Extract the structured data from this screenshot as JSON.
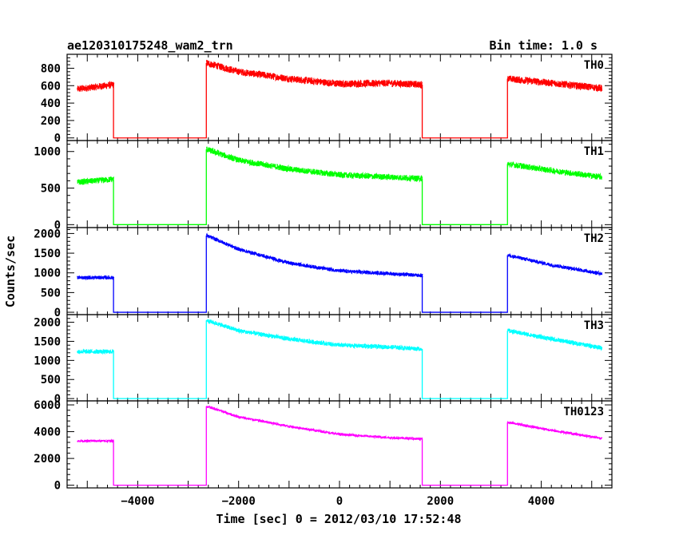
{
  "chart_data": {
    "type": "line",
    "title": "ae120310175248_wam2_trn",
    "bin_time_label": "Bin time: 1.0 s",
    "xlabel": "Time [sec] 0 = 2012/03/10 17:52:48",
    "ylabel": "Counts/sec",
    "xlim": [
      -5400,
      5400
    ],
    "xticks": [
      -4000,
      -2000,
      0,
      2000,
      4000
    ],
    "xtick_labels": [
      "−4000",
      "−2000",
      "0",
      "2000",
      "4000"
    ],
    "segments": {
      "on1": [
        -5200,
        -4480
      ],
      "off1": [
        -4480,
        -2640
      ],
      "on2": [
        -2640,
        1640
      ],
      "off2": [
        1640,
        3330
      ],
      "on3": [
        3330,
        5200
      ]
    },
    "panels": [
      {
        "name": "TH0",
        "color": "#ff0000",
        "ylim": [
          -30,
          960
        ],
        "yticks": [
          0,
          200,
          400,
          600,
          800
        ],
        "ytick_labels": [
          "0",
          "200",
          "400",
          "600",
          "800"
        ],
        "noise": 40,
        "data": [
          {
            "x": -5200,
            "y": 560
          },
          {
            "x": -4480,
            "y": 610
          },
          {
            "x": -4480,
            "y": 0
          },
          {
            "x": -2640,
            "y": 0
          },
          {
            "x": -2640,
            "y": 860
          },
          {
            "x": -2000,
            "y": 760
          },
          {
            "x": -1000,
            "y": 680
          },
          {
            "x": 0,
            "y": 620
          },
          {
            "x": 1000,
            "y": 630
          },
          {
            "x": 1640,
            "y": 610
          },
          {
            "x": 1640,
            "y": 0
          },
          {
            "x": 3330,
            "y": 0
          },
          {
            "x": 3330,
            "y": 680
          },
          {
            "x": 4200,
            "y": 630
          },
          {
            "x": 5200,
            "y": 570
          }
        ]
      },
      {
        "name": "TH1",
        "color": "#00ff00",
        "ylim": [
          -40,
          1150
        ],
        "yticks": [
          0,
          500,
          1000
        ],
        "ytick_labels": [
          "0",
          "500",
          "1000"
        ],
        "noise": 40,
        "data": [
          {
            "x": -5200,
            "y": 580
          },
          {
            "x": -4480,
            "y": 620
          },
          {
            "x": -4480,
            "y": 0
          },
          {
            "x": -2640,
            "y": 0
          },
          {
            "x": -2640,
            "y": 1030
          },
          {
            "x": -2000,
            "y": 880
          },
          {
            "x": -1000,
            "y": 760
          },
          {
            "x": 0,
            "y": 680
          },
          {
            "x": 1000,
            "y": 650
          },
          {
            "x": 1640,
            "y": 630
          },
          {
            "x": 1640,
            "y": 0
          },
          {
            "x": 3330,
            "y": 0
          },
          {
            "x": 3330,
            "y": 830
          },
          {
            "x": 4200,
            "y": 740
          },
          {
            "x": 5200,
            "y": 650
          }
        ]
      },
      {
        "name": "TH2",
        "color": "#0000ff",
        "ylim": [
          -60,
          2150
        ],
        "yticks": [
          0,
          500,
          1000,
          1500,
          2000
        ],
        "ytick_labels": [
          "0",
          "500",
          "1000",
          "1500",
          "2000"
        ],
        "noise": 45,
        "data": [
          {
            "x": -5200,
            "y": 880
          },
          {
            "x": -4480,
            "y": 880
          },
          {
            "x": -4480,
            "y": 0
          },
          {
            "x": -2640,
            "y": 0
          },
          {
            "x": -2640,
            "y": 1950
          },
          {
            "x": -2000,
            "y": 1600
          },
          {
            "x": -1000,
            "y": 1250
          },
          {
            "x": 0,
            "y": 1050
          },
          {
            "x": 1000,
            "y": 980
          },
          {
            "x": 1640,
            "y": 930
          },
          {
            "x": 1640,
            "y": 0
          },
          {
            "x": 3330,
            "y": 0
          },
          {
            "x": 3330,
            "y": 1450
          },
          {
            "x": 4200,
            "y": 1200
          },
          {
            "x": 5200,
            "y": 980
          }
        ]
      },
      {
        "name": "TH3",
        "color": "#00ffff",
        "ylim": [
          -60,
          2200
        ],
        "yticks": [
          0,
          500,
          1000,
          1500,
          2000
        ],
        "ytick_labels": [
          "0",
          "500",
          "1000",
          "1500",
          "2000"
        ],
        "noise": 55,
        "data": [
          {
            "x": -5200,
            "y": 1230
          },
          {
            "x": -4480,
            "y": 1230
          },
          {
            "x": -4480,
            "y": 0
          },
          {
            "x": -2640,
            "y": 0
          },
          {
            "x": -2640,
            "y": 2050
          },
          {
            "x": -2000,
            "y": 1780
          },
          {
            "x": -1000,
            "y": 1560
          },
          {
            "x": 0,
            "y": 1400
          },
          {
            "x": 1000,
            "y": 1350
          },
          {
            "x": 1640,
            "y": 1300
          },
          {
            "x": 1640,
            "y": 0
          },
          {
            "x": 3330,
            "y": 0
          },
          {
            "x": 3330,
            "y": 1780
          },
          {
            "x": 4200,
            "y": 1560
          },
          {
            "x": 5200,
            "y": 1330
          }
        ]
      },
      {
        "name": "TH0123",
        "color": "#ff00ff",
        "ylim": [
          -200,
          6300
        ],
        "yticks": [
          0,
          2000,
          4000,
          6000
        ],
        "ytick_labels": [
          "0",
          "2000",
          "4000",
          "6000"
        ],
        "noise": 90,
        "data": [
          {
            "x": -5200,
            "y": 3300
          },
          {
            "x": -4480,
            "y": 3300
          },
          {
            "x": -4480,
            "y": 0
          },
          {
            "x": -2640,
            "y": 0
          },
          {
            "x": -2640,
            "y": 5900
          },
          {
            "x": -2000,
            "y": 5100
          },
          {
            "x": -1000,
            "y": 4400
          },
          {
            "x": 0,
            "y": 3800
          },
          {
            "x": 1000,
            "y": 3550
          },
          {
            "x": 1640,
            "y": 3450
          },
          {
            "x": 1640,
            "y": 0
          },
          {
            "x": 3330,
            "y": 0
          },
          {
            "x": 3330,
            "y": 4700
          },
          {
            "x": 4200,
            "y": 4100
          },
          {
            "x": 5200,
            "y": 3500
          }
        ]
      }
    ]
  }
}
